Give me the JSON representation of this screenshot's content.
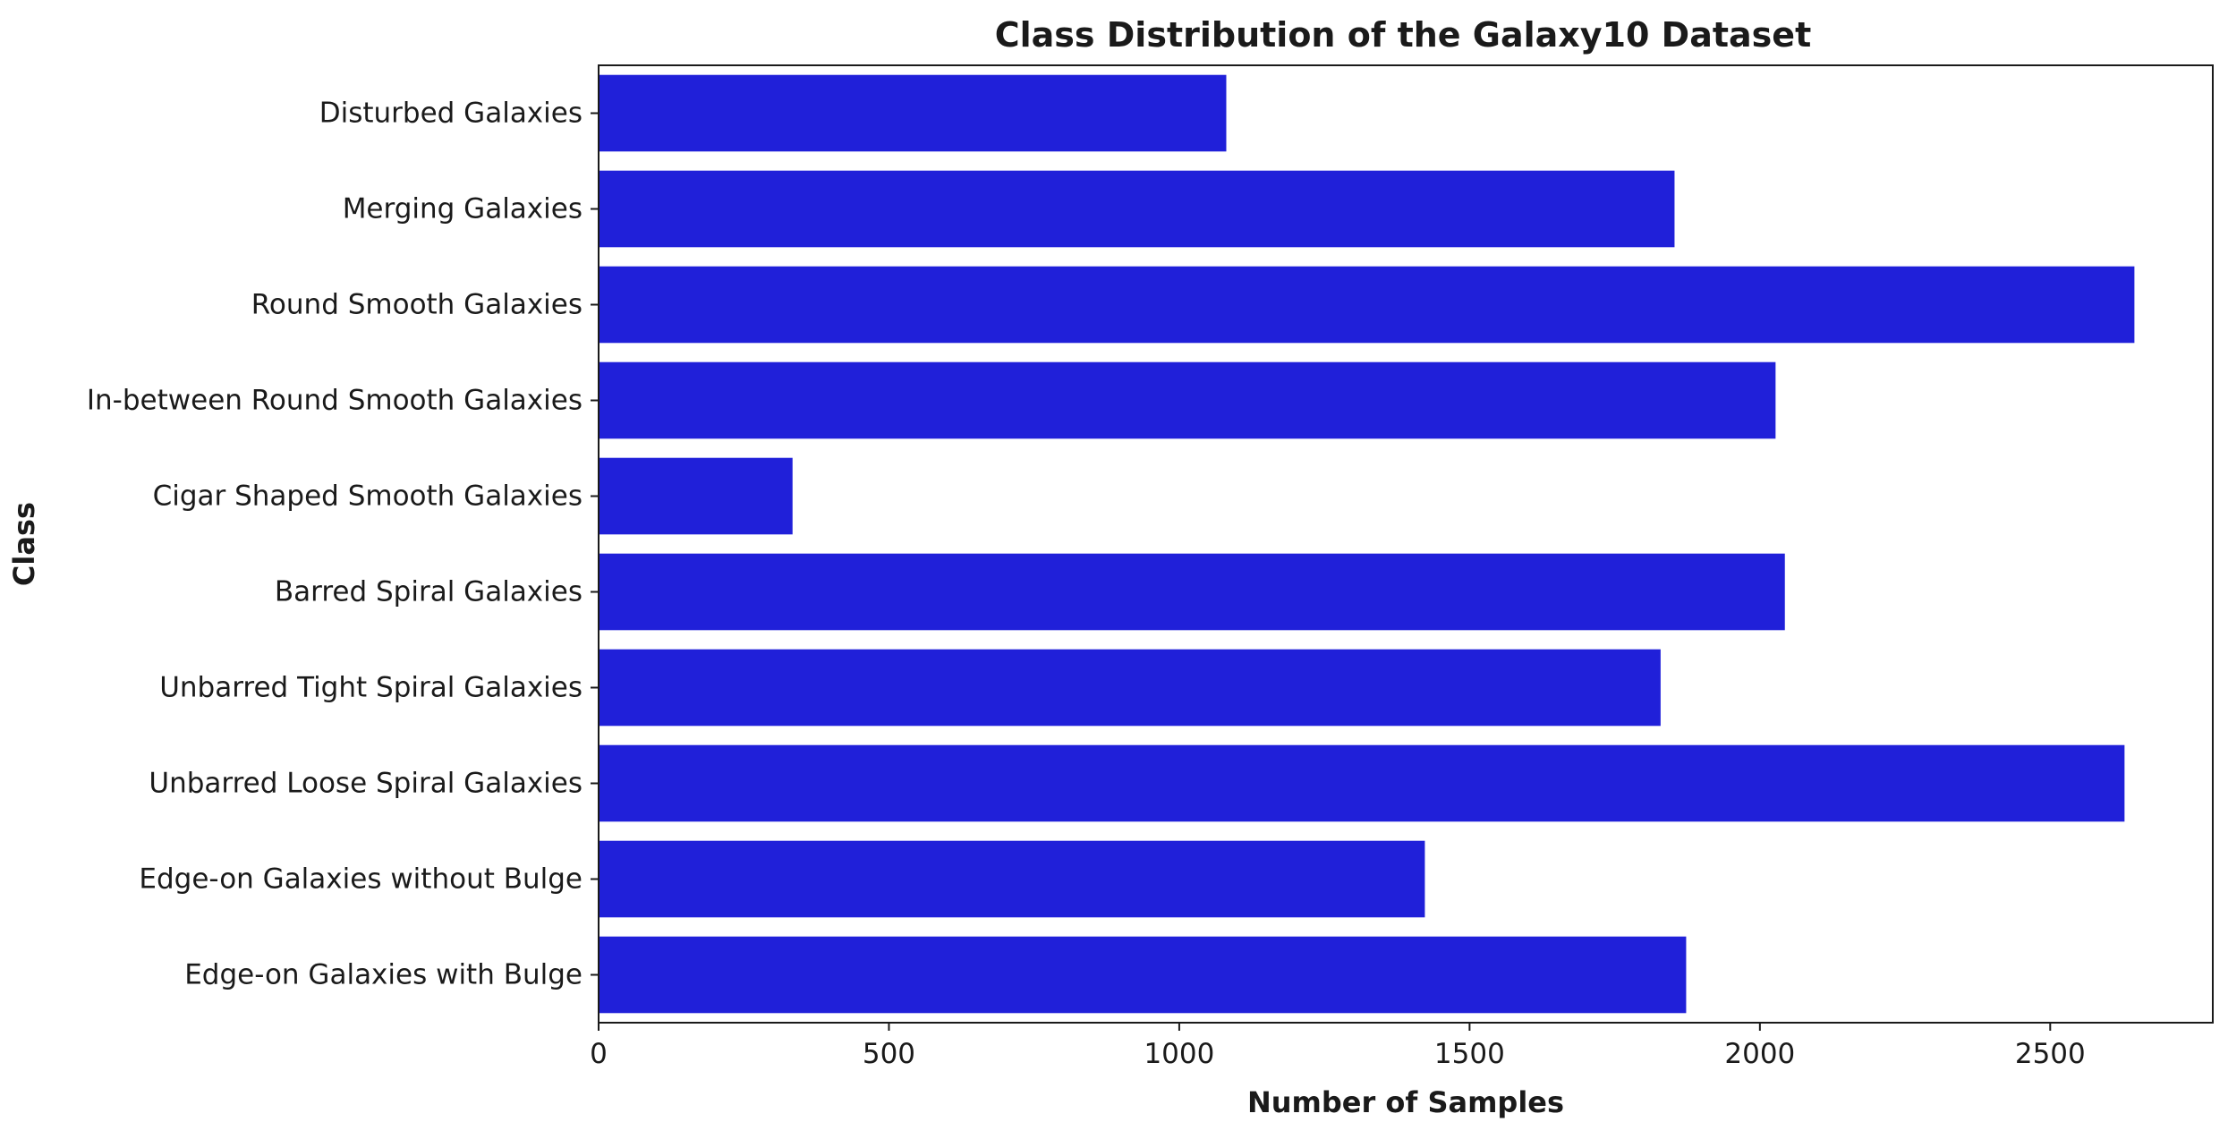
{
  "chart_data": {
    "type": "bar",
    "orientation": "horizontal",
    "title": "Class Distribution of the Galaxy10 Dataset",
    "xlabel": "Number of Samples",
    "ylabel": "Class",
    "categories": [
      "Disturbed Galaxies",
      "Merging Galaxies",
      "Round Smooth Galaxies",
      "In-between Round Smooth Galaxies",
      "Cigar Shaped Smooth Galaxies",
      "Barred Spiral Galaxies",
      "Unbarred Tight Spiral Galaxies",
      "Unbarred Loose Spiral Galaxies",
      "Edge-on Galaxies without Bulge",
      "Edge-on Galaxies with Bulge"
    ],
    "values": [
      1081,
      1853,
      2645,
      2027,
      334,
      2043,
      1829,
      2628,
      1423,
      1873
    ],
    "xlim": [
      0,
      2780
    ],
    "xticks": [
      0,
      500,
      1000,
      1500,
      2000,
      2500
    ],
    "grid": false,
    "legend": "none",
    "bar_color": "#2020d9"
  }
}
